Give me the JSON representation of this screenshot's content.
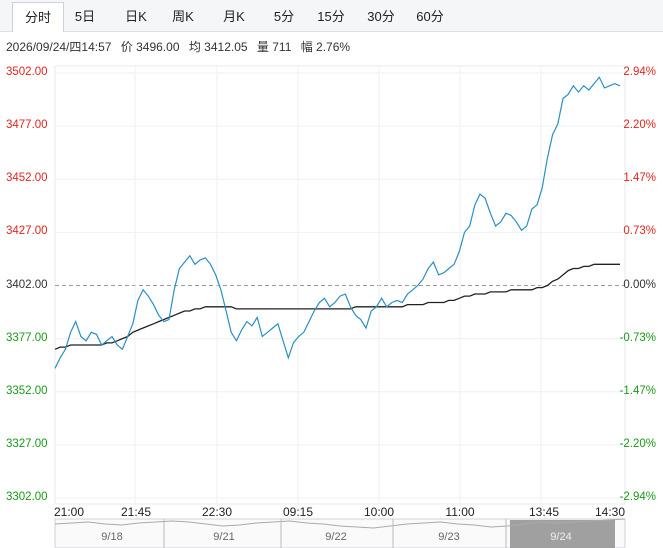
{
  "tabs": [
    {
      "label": "分时",
      "active": true
    },
    {
      "label": "5日"
    },
    {
      "label": "日K"
    },
    {
      "label": "周K"
    },
    {
      "label": "月K"
    },
    {
      "label": "5分"
    },
    {
      "label": "15分"
    },
    {
      "label": "30分"
    },
    {
      "label": "60分"
    }
  ],
  "info": {
    "datetime": "2026/09/24/四14:57",
    "price": "价 3496.00",
    "avg": "均 3412.05",
    "volume": "量 711",
    "change": "幅 2.76%"
  },
  "colors": {
    "up": "#e0261e",
    "down": "#1a9a1a",
    "price_line": "#2a8fc4",
    "avg_line": "#222222",
    "base": "#333333"
  },
  "chart_data": {
    "type": "line",
    "base_price": 3402.0,
    "ylim": [
      3302,
      3502
    ],
    "y_ticks_left": [
      "3502.00",
      "3477.00",
      "3452.00",
      "3427.00",
      "3402.00",
      "3377.00",
      "3352.00",
      "3327.00",
      "3302.00"
    ],
    "y_ticks_right": [
      "2.94%",
      "2.20%",
      "1.47%",
      "0.73%",
      "0.00%",
      "-0.73%",
      "-1.47%",
      "-2.20%",
      "-2.94%"
    ],
    "x_ticks": [
      "21:00",
      "21:45",
      "22:30",
      "09:15",
      "10:00",
      "11:00",
      "13:45",
      "14:30"
    ],
    "series": [
      {
        "values": [
          3363,
          3368,
          3372,
          3380,
          3385,
          3378,
          3376,
          3380,
          3379,
          3374,
          3376,
          3378,
          3374,
          3372,
          3378,
          3384,
          3395,
          3400,
          3397,
          3393,
          3388,
          3385,
          3386,
          3400,
          3410,
          3413,
          3416,
          3412,
          3414,
          3415,
          3412,
          3407,
          3400,
          3390,
          3380,
          3376,
          3381,
          3385,
          3383,
          3387,
          3378,
          3380,
          3382,
          3384,
          3376,
          3368,
          3375,
          3378,
          3380,
          3385,
          3390,
          3394,
          3396,
          3392,
          3394,
          3397,
          3398,
          3392,
          3388,
          3386,
          3382,
          3390,
          3392,
          3396,
          3392,
          3394,
          3395,
          3394,
          3398,
          3400,
          3402,
          3405,
          3410,
          3413,
          3407,
          3408,
          3410,
          3412,
          3418,
          3427,
          3430,
          3440,
          3445,
          3443,
          3436,
          3430,
          3432,
          3436,
          3435,
          3432,
          3428,
          3430,
          3438,
          3440,
          3448,
          3462,
          3473,
          3478,
          3490,
          3492,
          3496,
          3493,
          3496,
          3494,
          3497,
          3500,
          3495,
          3496,
          3497,
          3496
        ],
        "avg_values": [
          3372,
          3373,
          3373,
          3374,
          3374,
          3374,
          3374,
          3374,
          3374,
          3374,
          3375,
          3375,
          3376,
          3377,
          3378,
          3380,
          3381,
          3382,
          3383,
          3384,
          3385,
          3386,
          3387,
          3388,
          3389,
          3390,
          3390,
          3391,
          3391,
          3392,
          3392,
          3392,
          3392,
          3392,
          3392,
          3391,
          3391,
          3391,
          3391,
          3391,
          3391,
          3391,
          3391,
          3391,
          3391,
          3391,
          3391,
          3391,
          3391,
          3391,
          3391,
          3391,
          3391,
          3391,
          3391,
          3391,
          3391,
          3391,
          3392,
          3392,
          3392,
          3392,
          3392,
          3392,
          3392,
          3392,
          3392,
          3392,
          3393,
          3393,
          3393,
          3393,
          3394,
          3394,
          3394,
          3394,
          3395,
          3395,
          3396,
          3397,
          3397,
          3398,
          3398,
          3398,
          3399,
          3399,
          3399,
          3399,
          3400,
          3400,
          3400,
          3400,
          3400,
          3401,
          3401,
          3402,
          3404,
          3405,
          3407,
          3409,
          3410,
          3410,
          3411,
          3411,
          3412,
          3412,
          3412,
          3412,
          3412,
          3412
        ]
      }
    ],
    "nav_dates": [
      "9/18",
      "9/21",
      "9/22",
      "9/23",
      "9/24"
    ]
  }
}
